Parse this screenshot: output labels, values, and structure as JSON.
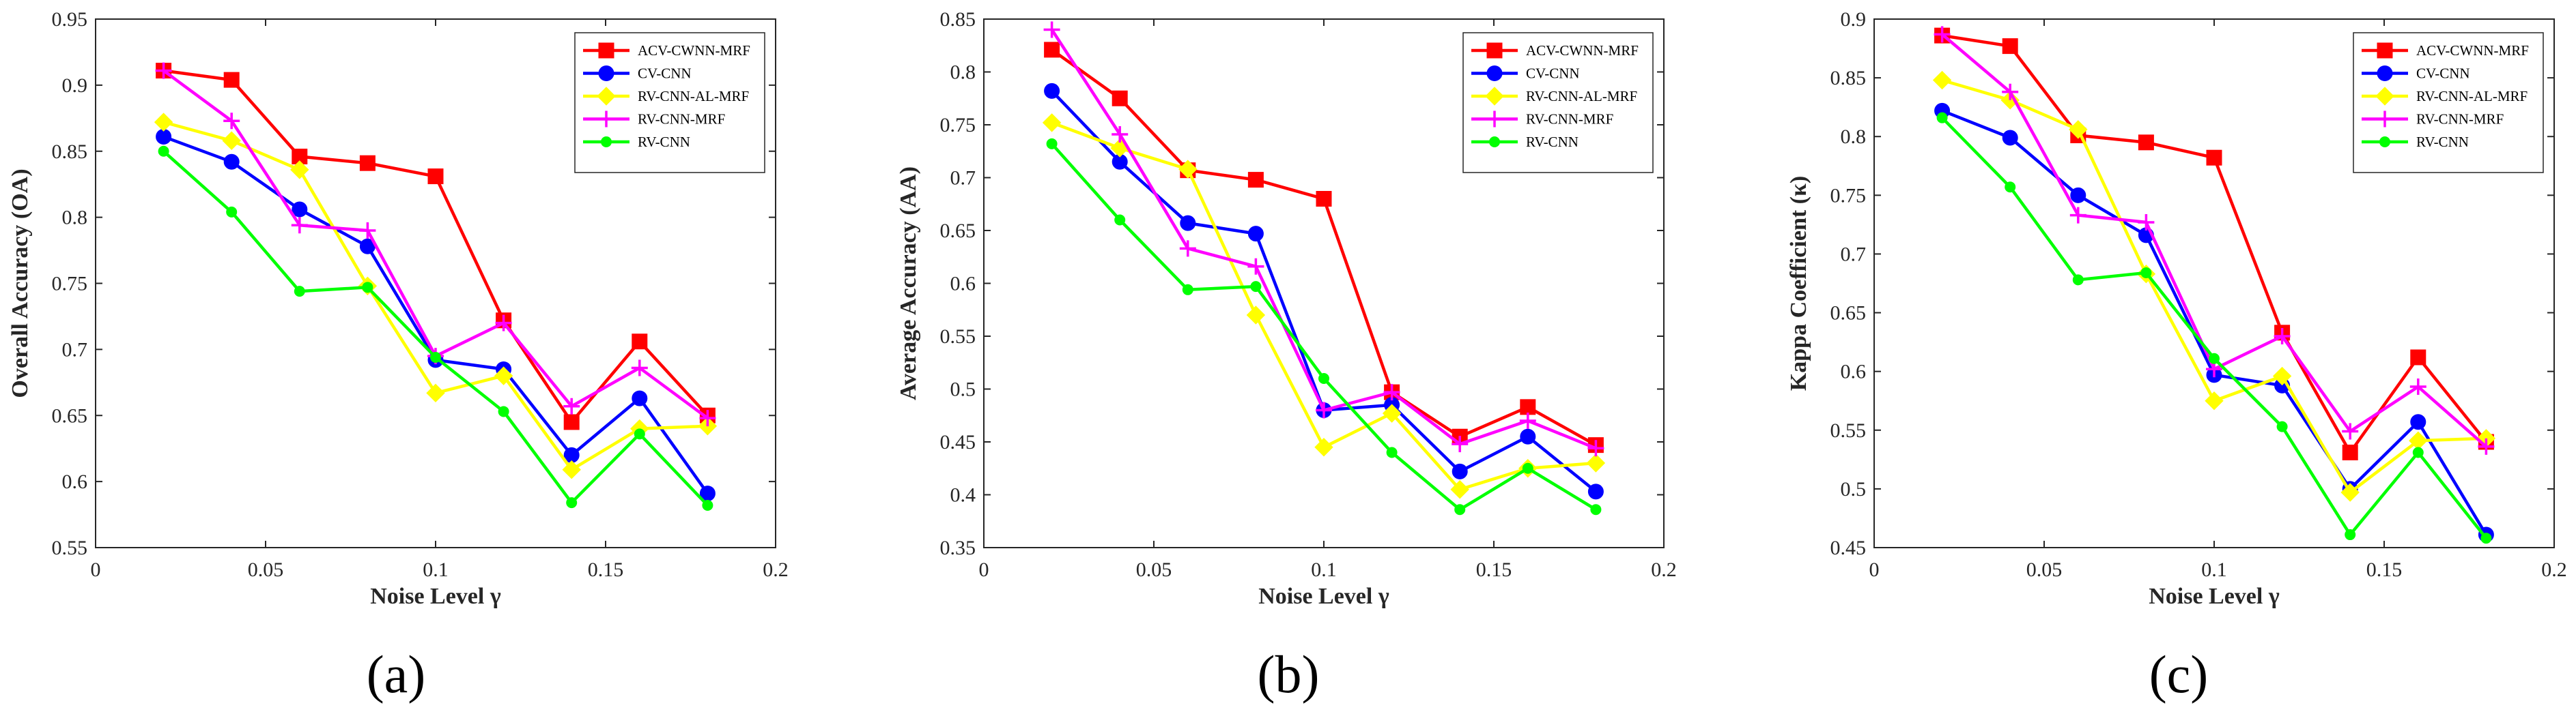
{
  "chart_data": [
    {
      "type": "line",
      "panel_label": "(a)",
      "ylabel": "Overall Accuracy (OA)",
      "xlabel": "Noise Level γ",
      "xlim": [
        0,
        0.2
      ],
      "ylim": [
        0.55,
        0.95
      ],
      "xticks": [
        0,
        0.05,
        0.1,
        0.15,
        0.2
      ],
      "xtick_labels": [
        "0",
        "0.05",
        "0.1",
        "0.15",
        "0.2"
      ],
      "yticks": [
        0.55,
        0.6,
        0.65,
        0.7,
        0.75,
        0.8,
        0.85,
        0.9,
        0.95
      ],
      "ytick_labels": [
        "0.55",
        "0.6",
        "0.65",
        "0.7",
        "0.75",
        "0.8",
        "0.85",
        "0.9",
        "0.95"
      ],
      "x": [
        0.02,
        0.04,
        0.06,
        0.08,
        0.1,
        0.12,
        0.14,
        0.16,
        0.18
      ],
      "legend_position": "top-right",
      "grid": false,
      "series": [
        {
          "name": "ACV-CWNN-MRF",
          "color": "#ff0000",
          "marker": "square",
          "values": [
            0.911,
            0.904,
            0.846,
            0.841,
            0.831,
            0.722,
            0.645,
            0.706,
            0.65
          ]
        },
        {
          "name": "CV-CNN",
          "color": "#0000ff",
          "marker": "circle",
          "values": [
            0.861,
            0.842,
            0.806,
            0.778,
            0.692,
            0.685,
            0.62,
            0.663,
            0.591
          ]
        },
        {
          "name": "RV-CNN-AL-MRF",
          "color": "#ffff00",
          "marker": "diamond",
          "values": [
            0.872,
            0.858,
            0.836,
            0.748,
            0.667,
            0.68,
            0.609,
            0.64,
            0.642
          ]
        },
        {
          "name": "RV-CNN-MRF",
          "color": "#ff00ff",
          "marker": "plus",
          "values": [
            0.911,
            0.873,
            0.794,
            0.79,
            0.695,
            0.72,
            0.657,
            0.686,
            0.648
          ]
        },
        {
          "name": "RV-CNN",
          "color": "#00ff00",
          "marker": "dot",
          "values": [
            0.85,
            0.804,
            0.744,
            0.747,
            0.694,
            0.653,
            0.584,
            0.636,
            0.582
          ]
        }
      ]
    },
    {
      "type": "line",
      "panel_label": "(b)",
      "ylabel": "Average Accuracy (AA)",
      "xlabel": "Noise Level γ",
      "xlim": [
        0,
        0.2
      ],
      "ylim": [
        0.35,
        0.85
      ],
      "xticks": [
        0,
        0.05,
        0.1,
        0.15,
        0.2
      ],
      "xtick_labels": [
        "0",
        "0.05",
        "0.1",
        "0.15",
        "0.2"
      ],
      "yticks": [
        0.35,
        0.4,
        0.45,
        0.5,
        0.55,
        0.6,
        0.65,
        0.7,
        0.75,
        0.8,
        0.85
      ],
      "ytick_labels": [
        "0.35",
        "0.4",
        "0.45",
        "0.5",
        "0.55",
        "0.6",
        "0.65",
        "0.7",
        "0.75",
        "0.8",
        "0.85"
      ],
      "x": [
        0.02,
        0.04,
        0.06,
        0.08,
        0.1,
        0.12,
        0.14,
        0.16,
        0.18
      ],
      "legend_position": "top-right",
      "grid": false,
      "series": [
        {
          "name": "ACV-CWNN-MRF",
          "color": "#ff0000",
          "marker": "square",
          "values": [
            0.821,
            0.775,
            0.707,
            0.698,
            0.68,
            0.497,
            0.455,
            0.483,
            0.447
          ]
        },
        {
          "name": "CV-CNN",
          "color": "#0000ff",
          "marker": "circle",
          "values": [
            0.782,
            0.715,
            0.657,
            0.647,
            0.48,
            0.485,
            0.422,
            0.455,
            0.403
          ]
        },
        {
          "name": "RV-CNN-AL-MRF",
          "color": "#ffff00",
          "marker": "diamond",
          "values": [
            0.752,
            0.728,
            0.708,
            0.57,
            0.445,
            0.477,
            0.405,
            0.425,
            0.43
          ]
        },
        {
          "name": "RV-CNN-MRF",
          "color": "#ff00ff",
          "marker": "plus",
          "values": [
            0.84,
            0.741,
            0.633,
            0.616,
            0.48,
            0.497,
            0.448,
            0.47,
            0.444
          ]
        },
        {
          "name": "RV-CNN",
          "color": "#00ff00",
          "marker": "dot",
          "values": [
            0.732,
            0.66,
            0.594,
            0.597,
            0.51,
            0.44,
            0.386,
            0.425,
            0.386
          ]
        }
      ]
    },
    {
      "type": "line",
      "panel_label": "(c)",
      "ylabel": "Kappa Coefficient (κ)",
      "xlabel": "Noise Level γ",
      "xlim": [
        0,
        0.2
      ],
      "ylim": [
        0.45,
        0.9
      ],
      "xticks": [
        0,
        0.05,
        0.1,
        0.15,
        0.2
      ],
      "xtick_labels": [
        "0",
        "0.05",
        "0.1",
        "0.15",
        "0.2"
      ],
      "yticks": [
        0.45,
        0.5,
        0.55,
        0.6,
        0.65,
        0.7,
        0.75,
        0.8,
        0.85,
        0.9
      ],
      "ytick_labels": [
        "0.45",
        "0.5",
        "0.55",
        "0.6",
        "0.65",
        "0.7",
        "0.75",
        "0.8",
        "0.85",
        "0.9"
      ],
      "x": [
        0.02,
        0.04,
        0.06,
        0.08,
        0.1,
        0.12,
        0.14,
        0.16,
        0.18
      ],
      "legend_position": "top-right",
      "grid": false,
      "series": [
        {
          "name": "ACV-CWNN-MRF",
          "color": "#ff0000",
          "marker": "square",
          "values": [
            0.886,
            0.877,
            0.801,
            0.795,
            0.782,
            0.633,
            0.531,
            0.612,
            0.54
          ]
        },
        {
          "name": "CV-CNN",
          "color": "#0000ff",
          "marker": "circle",
          "values": [
            0.822,
            0.799,
            0.75,
            0.716,
            0.597,
            0.588,
            0.5,
            0.557,
            0.461
          ]
        },
        {
          "name": "RV-CNN-AL-MRF",
          "color": "#ffff00",
          "marker": "diamond",
          "values": [
            0.848,
            0.831,
            0.806,
            0.683,
            0.575,
            0.596,
            0.497,
            0.541,
            0.543
          ]
        },
        {
          "name": "RV-CNN-MRF",
          "color": "#ff00ff",
          "marker": "plus",
          "values": [
            0.887,
            0.838,
            0.733,
            0.727,
            0.602,
            0.63,
            0.549,
            0.587,
            0.536
          ]
        },
        {
          "name": "RV-CNN",
          "color": "#00ff00",
          "marker": "dot",
          "values": [
            0.816,
            0.757,
            0.678,
            0.684,
            0.611,
            0.553,
            0.461,
            0.531,
            0.458
          ]
        }
      ]
    }
  ]
}
